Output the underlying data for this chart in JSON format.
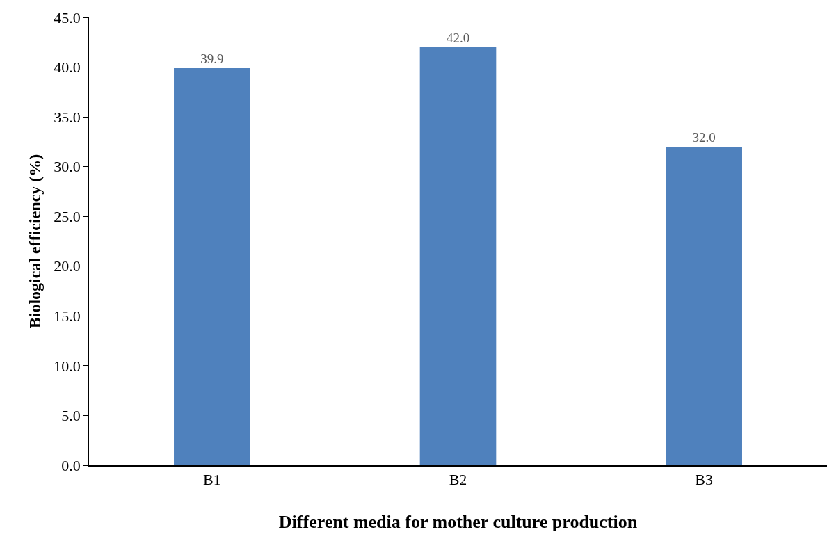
{
  "chart_data": {
    "type": "bar",
    "xlabel": "Different media for mother culture production",
    "ylabel": "Biological efficiency (%)",
    "categories": [
      "B1",
      "B2",
      "B3"
    ],
    "values": [
      39.9,
      42.0,
      32.0
    ],
    "value_labels": [
      "39.9",
      "42.0",
      "32.0"
    ],
    "color": "#4f81bd",
    "ylim": [
      0,
      45
    ],
    "yticks": [
      {
        "value": 0,
        "label": "0.0"
      },
      {
        "value": 5,
        "label": "5.0"
      },
      {
        "value": 10,
        "label": "10.0"
      },
      {
        "value": 15,
        "label": "15.0"
      },
      {
        "value": 20,
        "label": "20.0"
      },
      {
        "value": 25,
        "label": "25.0"
      },
      {
        "value": 30,
        "label": "30.0"
      },
      {
        "value": 35,
        "label": "35.0"
      },
      {
        "value": 40,
        "label": "40.0"
      },
      {
        "value": 45,
        "label": "45.0"
      }
    ],
    "legend": false
  }
}
